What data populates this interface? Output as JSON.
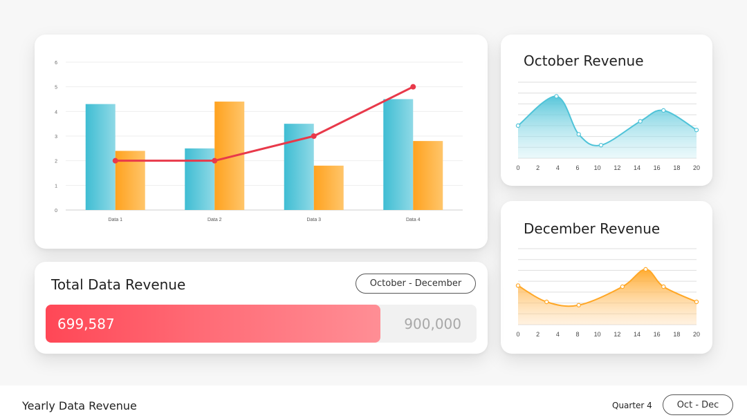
{
  "main_chart": {
    "chart_data": {
      "type": "bar",
      "categories": [
        "Data 1",
        "Data 2",
        "Data 3",
        "Data 4"
      ],
      "series": [
        {
          "values": [
            4.3,
            2.5,
            3.5,
            4.5
          ],
          "color": "#4fc3d8"
        },
        {
          "values": [
            2.4,
            4.4,
            1.8,
            2.8
          ],
          "color": "#ffa726"
        }
      ],
      "line_series": {
        "values": [
          2,
          2,
          3,
          5
        ],
        "color": "#e8394a"
      },
      "y_ticks": [
        "0",
        "1",
        "2",
        "3",
        "4",
        "5",
        "6"
      ],
      "ylim": [
        0,
        6
      ],
      "grid": true
    }
  },
  "october": {
    "title": "October Revenue",
    "chart_data": {
      "type": "area",
      "x": [
        0,
        4.3,
        6.8,
        9.3,
        13.7,
        16.3,
        20
      ],
      "y": [
        3.0,
        5.7,
        2.2,
        1.2,
        3.4,
        4.4,
        2.6
      ],
      "x_ticks": [
        "0",
        "2",
        "4",
        "6",
        "10",
        "12",
        "14",
        "16",
        "18",
        "20"
      ],
      "ylim": [
        0,
        7
      ],
      "color": "#4fc3d8"
    }
  },
  "december": {
    "title": "December Revenue",
    "chart_data": {
      "type": "area",
      "x": [
        0,
        3.2,
        6.8,
        11.7,
        14.3,
        16.3,
        20
      ],
      "y": [
        3.6,
        2.1,
        1.8,
        3.5,
        5.1,
        3.5,
        2.1
      ],
      "x_ticks": [
        "0",
        "2",
        "4",
        "8",
        "10",
        "12",
        "14",
        "16",
        "18",
        "20"
      ],
      "ylim": [
        0,
        7
      ],
      "color": "#ffa726"
    }
  },
  "total": {
    "title": "Total Data Revenue",
    "range_label": "October - December",
    "value_label": "699,587",
    "max_label": "900,000",
    "progress_fraction": 0.7773
  },
  "footer": {
    "title": "Yearly Data Revenue",
    "quarter": "Quarter 4",
    "range_label": "Oct - Dec"
  }
}
